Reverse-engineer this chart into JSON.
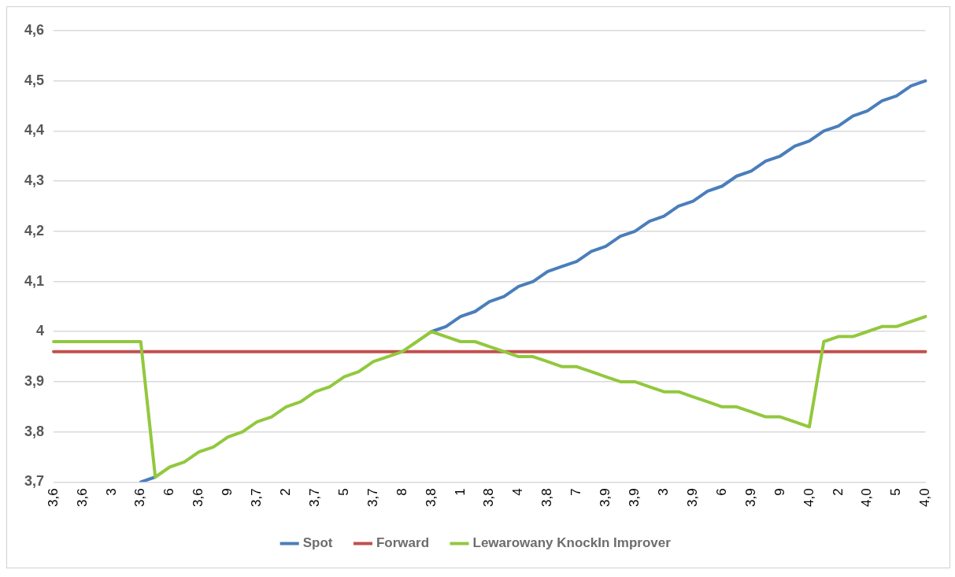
{
  "chart_data": {
    "type": "line",
    "categories": [
      "3,6",
      null,
      "3,6",
      null,
      "3",
      null,
      "3,6",
      null,
      "6",
      null,
      "3,6",
      null,
      "9",
      null,
      "3,7",
      null,
      "2",
      null,
      "3,7",
      null,
      "5",
      null,
      "3,7",
      null,
      "8",
      null,
      "3,8",
      null,
      "1",
      null,
      "3,8",
      null,
      "4",
      null,
      "3,8",
      null,
      "7",
      null,
      "3,9",
      null,
      "3,9",
      null,
      "3",
      null,
      "3,9",
      null,
      "6",
      null,
      "3,9",
      null,
      "9",
      null,
      "4,0",
      null,
      "2",
      null,
      "4,0",
      null,
      "5",
      null,
      "4,0"
    ],
    "series": [
      {
        "name": "Spot",
        "color": "#4a7ebb",
        "values": [
          null,
          null,
          null,
          null,
          null,
          null,
          3.7,
          3.71,
          null,
          null,
          null,
          null,
          null,
          null,
          null,
          null,
          null,
          null,
          null,
          null,
          null,
          null,
          null,
          null,
          null,
          null,
          4.0,
          4.01,
          4.03,
          4.04,
          4.06,
          4.07,
          4.09,
          4.1,
          4.12,
          4.13,
          4.14,
          4.16,
          4.17,
          4.19,
          4.2,
          4.22,
          4.23,
          4.25,
          4.26,
          4.28,
          4.29,
          4.31,
          4.32,
          4.34,
          4.35,
          4.37,
          4.38,
          4.4,
          4.41,
          4.43,
          4.44,
          4.46,
          4.47,
          4.49,
          4.5
        ]
      },
      {
        "name": "Forward",
        "color": "#c0504d",
        "values": [
          3.96,
          3.96,
          3.96,
          3.96,
          3.96,
          3.96,
          3.96,
          3.96,
          3.96,
          3.96,
          3.96,
          3.96,
          3.96,
          3.96,
          3.96,
          3.96,
          3.96,
          3.96,
          3.96,
          3.96,
          3.96,
          3.96,
          3.96,
          3.96,
          3.96,
          3.96,
          3.96,
          3.96,
          3.96,
          3.96,
          3.96,
          3.96,
          3.96,
          3.96,
          3.96,
          3.96,
          3.96,
          3.96,
          3.96,
          3.96,
          3.96,
          3.96,
          3.96,
          3.96,
          3.96,
          3.96,
          3.96,
          3.96,
          3.96,
          3.96,
          3.96,
          3.96,
          3.96,
          3.96,
          3.96,
          3.96,
          3.96,
          3.96,
          3.96,
          3.96,
          3.96
        ]
      },
      {
        "name": "Lewarowany KnockIn Improver",
        "color": "#92c83e",
        "values": [
          3.98,
          3.98,
          3.98,
          3.98,
          3.98,
          3.98,
          3.98,
          3.71,
          3.73,
          3.74,
          3.76,
          3.77,
          3.79,
          3.8,
          3.82,
          3.83,
          3.85,
          3.86,
          3.88,
          3.89,
          3.91,
          3.92,
          3.94,
          3.95,
          3.96,
          3.98,
          4.0,
          3.99,
          3.98,
          3.98,
          3.97,
          3.96,
          3.95,
          3.95,
          3.94,
          3.93,
          3.93,
          3.92,
          3.91,
          3.9,
          3.9,
          3.89,
          3.88,
          3.88,
          3.87,
          3.86,
          3.85,
          3.85,
          3.84,
          3.83,
          3.83,
          3.82,
          3.81,
          3.98,
          3.99,
          3.99,
          4.0,
          4.01,
          4.01,
          4.02,
          4.03
        ]
      }
    ],
    "ylim": [
      3.7,
      4.6
    ],
    "yticks": [
      {
        "value": 3.7,
        "label": "3,7"
      },
      {
        "value": 3.8,
        "label": "3,8"
      },
      {
        "value": 3.9,
        "label": "3,9"
      },
      4,
      {
        "value": 4.1,
        "label": "4,1"
      },
      {
        "value": 4.2,
        "label": "4,2"
      },
      {
        "value": 4.3,
        "label": "4,3"
      },
      {
        "value": 4.4,
        "label": "4,4"
      },
      {
        "value": 4.5,
        "label": "4,5"
      },
      {
        "value": 4.6,
        "label": "4,6"
      }
    ],
    "grid": "y",
    "legend": "bottom",
    "marker": "none",
    "line_style": "solid"
  }
}
